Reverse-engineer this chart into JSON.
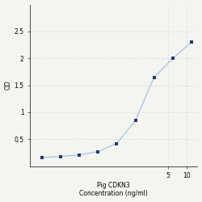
{
  "x": [
    0.047,
    0.094,
    0.188,
    0.375,
    0.75,
    1.5,
    3.0,
    6.0,
    12.0
  ],
  "y": [
    0.16,
    0.18,
    0.21,
    0.27,
    0.42,
    0.85,
    1.65,
    2.0,
    2.3
  ],
  "line_color": "#a8c8e8",
  "marker_color": "#1f3a6e",
  "marker_size": 3.5,
  "xlabel_line1": "Pig CDKN3",
  "xlabel_line2": "Concentration (ng/ml)",
  "ylabel": "OD",
  "xlim_log": [
    -1.5,
    1.2
  ],
  "ylim": [
    0,
    3.0
  ],
  "yticks": [
    0.5,
    1.0,
    1.5,
    2.0,
    2.5
  ],
  "ytick_labels": [
    "0.5",
    "1",
    "1.5",
    "2",
    "2.5"
  ],
  "xtick_labels": [
    "",
    "",
    "",
    "",
    "",
    "",
    "",
    "",
    ""
  ],
  "grid_color": "#dddddd",
  "background_color": "#f5f5f0",
  "axis_fontsize": 5.5,
  "label_fontsize": 5.5
}
